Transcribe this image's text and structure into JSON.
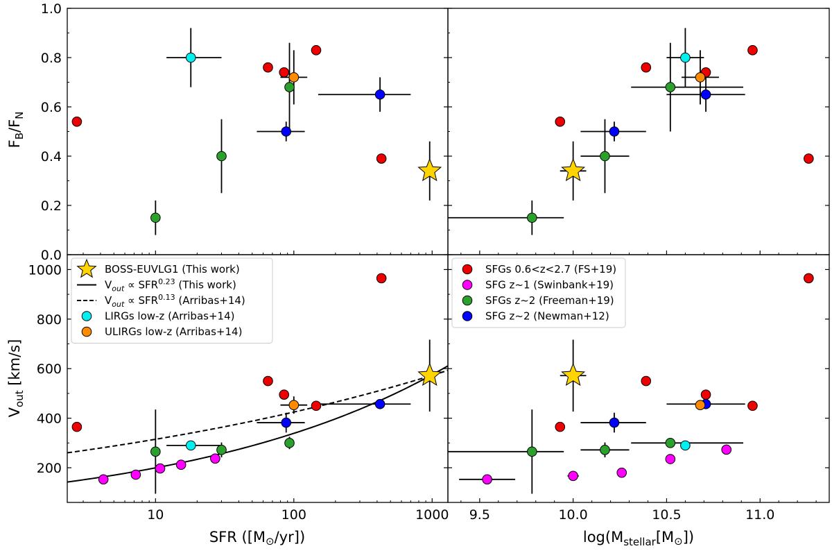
{
  "figure": {
    "panel_labels": {
      "top_left_ylabel": "F_B/F_N",
      "bottom_left_ylabel": "V_out [km/s]",
      "bottom_left_xlabel": "SFR ([M☉/yr])",
      "bottom_right_xlabel": "log(M_stellar[M☉])"
    }
  },
  "colors": {
    "fs19": "#ee0000",
    "swinbank19": "#ff00ff",
    "freeman19": "#2ca02c",
    "newman12": "#0000ff",
    "arribas_lirgs": "#00f0f0",
    "arribas_ulirgs": "#ff8c00",
    "this_work": "#ffd400"
  },
  "chart_data": [
    {
      "id": "ratio_vs_sfr",
      "type": "scatter",
      "xscale": "log",
      "xlim": [
        2.3,
        1300
      ],
      "ylim": [
        0.0,
        1.0
      ],
      "xticks": [
        10,
        100,
        1000
      ],
      "xticklabels": [],
      "yticks": [
        0.0,
        0.2,
        0.4,
        0.6,
        0.8,
        1.0
      ],
      "yticklabels": [
        "0.0",
        "0.2",
        "0.4",
        "0.6",
        "0.8",
        "1.0"
      ],
      "ylabel": "F_B/F_N",
      "xlabel": "",
      "series": [
        {
          "name": "SFGs 0.6<z<2.7 (FS+19)",
          "key": "fs19",
          "marker": "circle",
          "points": [
            {
              "x": 2.7,
              "y": 0.54
            },
            {
              "x": 65,
              "y": 0.76
            },
            {
              "x": 85,
              "y": 0.74
            },
            {
              "x": 145,
              "y": 0.83
            },
            {
              "x": 430,
              "y": 0.39
            }
          ]
        },
        {
          "name": "SFGs z~2 (Freeman+19)",
          "key": "freeman19",
          "marker": "circle",
          "points": [
            {
              "x": 10,
              "y": 0.15,
              "yerr": [
                0.07,
                0.07
              ]
            },
            {
              "x": 30,
              "y": 0.4,
              "yerr": [
                0.15,
                0.15
              ]
            },
            {
              "x": 93,
              "y": 0.68,
              "yerr": [
                0.18,
                0.18
              ]
            }
          ]
        },
        {
          "name": "SFG z~2 (Newman+12)",
          "key": "newman12",
          "marker": "circle",
          "points": [
            {
              "x": 88,
              "y": 0.5,
              "xerr": [
                34,
                32
              ],
              "yerr": [
                0.04,
                0.04
              ]
            },
            {
              "x": 420,
              "y": 0.65,
              "xerr": [
                270,
                280
              ],
              "yerr": [
                0.07,
                0.07
              ]
            }
          ]
        },
        {
          "name": "LIRGs low-z (Arribas+14)",
          "key": "arribas_lirgs",
          "marker": "circle",
          "points": [
            {
              "x": 18,
              "y": 0.8,
              "xerr": [
                6,
                12
              ],
              "yerr": [
                0.12,
                0.12
              ]
            }
          ]
        },
        {
          "name": "ULIRGs low-z (Arribas+14)",
          "key": "arribas_ulirgs",
          "marker": "circle",
          "points": [
            {
              "x": 100,
              "y": 0.72,
              "xerr": [
                20,
                25
              ],
              "yerr": [
                0.11,
                0.11
              ]
            }
          ]
        },
        {
          "name": "BOSS-EUVLG1 (This work)",
          "key": "this_work",
          "marker": "star",
          "points": [
            {
              "x": 960,
              "y": 0.34,
              "yerr": [
                0.12,
                0.12
              ]
            }
          ]
        }
      ]
    },
    {
      "id": "ratio_vs_mass",
      "type": "scatter",
      "xscale": "linear",
      "xlim": [
        9.33,
        11.37
      ],
      "ylim": [
        0.0,
        1.0
      ],
      "xticks": [
        9.5,
        10.0,
        10.5,
        11.0
      ],
      "xticklabels": [],
      "yticks": [
        0.0,
        0.2,
        0.4,
        0.6,
        0.8,
        1.0
      ],
      "yticklabels": [],
      "xlabel": "",
      "ylabel": "",
      "series": [
        {
          "name": "SFGs 0.6<z<2.7 (FS+19)",
          "key": "fs19",
          "marker": "circle",
          "points": [
            {
              "x": 9.93,
              "y": 0.54
            },
            {
              "x": 10.39,
              "y": 0.76
            },
            {
              "x": 10.71,
              "y": 0.74
            },
            {
              "x": 10.96,
              "y": 0.83
            },
            {
              "x": 11.26,
              "y": 0.39
            }
          ]
        },
        {
          "name": "SFGs z~2 (Freeman+19)",
          "key": "freeman19",
          "marker": "circle",
          "points": [
            {
              "x": 9.78,
              "y": 0.15,
              "xerr": [
                0.45,
                0.17
              ],
              "yerr": [
                0.07,
                0.07
              ]
            },
            {
              "x": 10.17,
              "y": 0.4,
              "xerr": [
                0.13,
                0.13
              ],
              "yerr": [
                0.15,
                0.15
              ]
            },
            {
              "x": 10.52,
              "y": 0.68,
              "xerr": [
                0.21,
                0.39
              ],
              "yerr": [
                0.18,
                0.18
              ]
            }
          ]
        },
        {
          "name": "SFG z~2 (Newman+12)",
          "key": "newman12",
          "marker": "circle",
          "points": [
            {
              "x": 10.22,
              "y": 0.5,
              "xerr": [
                0.18,
                0.17
              ],
              "yerr": [
                0.04,
                0.04
              ]
            },
            {
              "x": 10.71,
              "y": 0.65,
              "xerr": [
                0.21,
                0.21
              ],
              "yerr": [
                0.07,
                0.07
              ]
            }
          ]
        },
        {
          "name": "LIRGs low-z (Arribas+14)",
          "key": "arribas_lirgs",
          "marker": "circle",
          "points": [
            {
              "x": 10.6,
              "y": 0.8,
              "xerr": [
                0.1,
                0.1
              ],
              "yerr": [
                0.12,
                0.12
              ]
            }
          ]
        },
        {
          "name": "ULIRGs low-z (Arribas+14)",
          "key": "arribas_ulirgs",
          "marker": "circle",
          "points": [
            {
              "x": 10.68,
              "y": 0.72,
              "xerr": [
                0.1,
                0.1
              ],
              "yerr": [
                0.11,
                0.11
              ]
            }
          ]
        },
        {
          "name": "BOSS-EUVLG1 (This work)",
          "key": "this_work",
          "marker": "star",
          "points": [
            {
              "x": 10.0,
              "y": 0.34,
              "xerr": [
                0.07,
                0.07
              ],
              "yerr": [
                0.12,
                0.12
              ]
            }
          ]
        }
      ]
    },
    {
      "id": "vout_vs_sfr",
      "type": "scatter",
      "xscale": "log",
      "xlim": [
        2.3,
        1300
      ],
      "ylim": [
        60,
        1060
      ],
      "xticks": [
        10,
        100,
        1000
      ],
      "xticklabels": [
        "10",
        "100",
        "1000"
      ],
      "yticks": [
        200,
        400,
        600,
        800,
        1000
      ],
      "yticklabels": [
        "200",
        "400",
        "600",
        "800",
        "1000"
      ],
      "xlabel": "SFR ([M☉/yr])",
      "ylabel": "V_out [km/s]",
      "lines": [
        {
          "name": "V_out ∝ SFR^0.23 (This work)",
          "style": "solid",
          "norm": 570,
          "x0": 960,
          "exponent": 0.23
        },
        {
          "name": "V_out ∝ SFR^0.13 (Arribas+14)",
          "style": "dashed",
          "norm": 570,
          "x0": 960,
          "exponent": 0.13
        }
      ],
      "series": [
        {
          "name": "SFGs 0.6<z<2.7 (FS+19)",
          "key": "fs19",
          "marker": "circle",
          "points": [
            {
              "x": 2.7,
              "y": 365
            },
            {
              "x": 65,
              "y": 550
            },
            {
              "x": 85,
              "y": 495
            },
            {
              "x": 145,
              "y": 450
            },
            {
              "x": 430,
              "y": 965
            }
          ]
        },
        {
          "name": "SFG z~1 (Swinbank+19)",
          "key": "swinbank19",
          "marker": "circle",
          "points": [
            {
              "x": 4.2,
              "y": 153
            },
            {
              "x": 7.2,
              "y": 172
            },
            {
              "x": 10.8,
              "y": 197
            },
            {
              "x": 15.3,
              "y": 212
            },
            {
              "x": 27,
              "y": 237
            }
          ]
        },
        {
          "name": "SFGs z~2 (Freeman+19)",
          "key": "freeman19",
          "marker": "circle",
          "points": [
            {
              "x": 10,
              "y": 265,
              "yerr": [
                170,
                170
              ]
            },
            {
              "x": 30,
              "y": 272,
              "yerr": [
                30,
                30
              ]
            },
            {
              "x": 93,
              "y": 300,
              "yerr": [
                25,
                25
              ]
            }
          ]
        },
        {
          "name": "SFG z~2 (Newman+12)",
          "key": "newman12",
          "marker": "circle",
          "points": [
            {
              "x": 88,
              "y": 382,
              "xerr": [
                34,
                32
              ],
              "yerr": [
                40,
                40
              ]
            },
            {
              "x": 420,
              "y": 457,
              "xerr": [
                270,
                280
              ]
            }
          ]
        },
        {
          "name": "LIRGs low-z (Arribas+14)",
          "key": "arribas_lirgs",
          "marker": "circle",
          "points": [
            {
              "x": 18,
              "y": 290,
              "xerr": [
                6,
                12
              ]
            }
          ]
        },
        {
          "name": "ULIRGs low-z (Arribas+14)",
          "key": "arribas_ulirgs",
          "marker": "circle",
          "points": [
            {
              "x": 100,
              "y": 453,
              "xerr": [
                20,
                25
              ],
              "yerr": [
                35,
                35
              ]
            }
          ]
        },
        {
          "name": "BOSS-EUVLG1 (This work)",
          "key": "this_work",
          "marker": "star",
          "points": [
            {
              "x": 960,
              "y": 572,
              "yerr": [
                145,
                145
              ]
            }
          ]
        }
      ],
      "legend": {
        "placement": "upper-left",
        "entries": [
          {
            "label": "BOSS-EUVLG1 (This work)",
            "kind": "star",
            "key": "this_work"
          },
          {
            "label": "V_out ∝ SFR^0.23 (This work)",
            "kind": "solid"
          },
          {
            "label": "V_out ∝ SFR^0.13 (Arribas+14)",
            "kind": "dashed"
          },
          {
            "label": "LIRGs low-z (Arribas+14)",
            "kind": "circle",
            "key": "arribas_lirgs"
          },
          {
            "label": "ULIRGs low-z (Arribas+14)",
            "kind": "circle",
            "key": "arribas_ulirgs"
          }
        ]
      }
    },
    {
      "id": "vout_vs_mass",
      "type": "scatter",
      "xscale": "linear",
      "xlim": [
        9.33,
        11.37
      ],
      "ylim": [
        60,
        1060
      ],
      "xticks": [
        9.5,
        10.0,
        10.5,
        11.0
      ],
      "xticklabels": [
        "9.5",
        "10.0",
        "10.5",
        "11.0"
      ],
      "yticks": [
        200,
        400,
        600,
        800,
        1000
      ],
      "yticklabels": [],
      "xlabel": "log(M_stellar[M☉])",
      "ylabel": "",
      "series": [
        {
          "name": "SFGs 0.6<z<2.7 (FS+19)",
          "key": "fs19",
          "marker": "circle",
          "points": [
            {
              "x": 9.93,
              "y": 365
            },
            {
              "x": 10.39,
              "y": 550
            },
            {
              "x": 10.71,
              "y": 495
            },
            {
              "x": 10.96,
              "y": 450
            },
            {
              "x": 11.26,
              "y": 965
            }
          ]
        },
        {
          "name": "SFG z~1 (Swinbank+19)",
          "key": "swinbank19",
          "marker": "circle",
          "points": [
            {
              "x": 9.54,
              "y": 153,
              "xerr": [
                0.15,
                0.15
              ]
            },
            {
              "x": 10.0,
              "y": 167,
              "xerr": [
                0.03,
                0.03
              ]
            },
            {
              "x": 10.26,
              "y": 180
            },
            {
              "x": 10.52,
              "y": 235
            },
            {
              "x": 10.82,
              "y": 273
            }
          ]
        },
        {
          "name": "SFGs z~2 (Freeman+19)",
          "key": "freeman19",
          "marker": "circle",
          "points": [
            {
              "x": 9.78,
              "y": 265,
              "xerr": [
                0.45,
                0.17
              ],
              "yerr": [
                170,
                170
              ]
            },
            {
              "x": 10.17,
              "y": 272,
              "xerr": [
                0.13,
                0.13
              ],
              "yerr": [
                30,
                30
              ]
            },
            {
              "x": 10.52,
              "y": 300,
              "xerr": [
                0.21,
                0.39
              ]
            }
          ]
        },
        {
          "name": "SFG z~2 (Newman+12)",
          "key": "newman12",
          "marker": "circle",
          "points": [
            {
              "x": 10.22,
              "y": 382,
              "xerr": [
                0.18,
                0.17
              ],
              "yerr": [
                40,
                40
              ]
            },
            {
              "x": 10.71,
              "y": 457,
              "xerr": [
                0.21,
                0.21
              ]
            }
          ]
        },
        {
          "name": "LIRGs low-z (Arribas+14)",
          "key": "arribas_lirgs",
          "marker": "circle",
          "points": [
            {
              "x": 10.6,
              "y": 290
            }
          ]
        },
        {
          "name": "ULIRGs low-z (Arribas+14)",
          "key": "arribas_ulirgs",
          "marker": "circle",
          "points": [
            {
              "x": 10.68,
              "y": 453
            }
          ]
        },
        {
          "name": "BOSS-EUVLG1 (This work)",
          "key": "this_work",
          "marker": "star",
          "points": [
            {
              "x": 10.0,
              "y": 572,
              "xerr": [
                0.07,
                0.07
              ],
              "yerr": [
                145,
                145
              ]
            }
          ]
        }
      ],
      "legend": {
        "placement": "upper-left",
        "entries": [
          {
            "label": "SFGs 0.6<z<2.7 (FS+19)",
            "kind": "circle",
            "key": "fs19"
          },
          {
            "label": "SFG z~1 (Swinbank+19)",
            "kind": "circle",
            "key": "swinbank19"
          },
          {
            "label": "SFGs z~2 (Freeman+19)",
            "kind": "circle",
            "key": "freeman19"
          },
          {
            "label": "SFG z~2 (Newman+12)",
            "kind": "circle",
            "key": "newman12"
          }
        ]
      }
    }
  ]
}
